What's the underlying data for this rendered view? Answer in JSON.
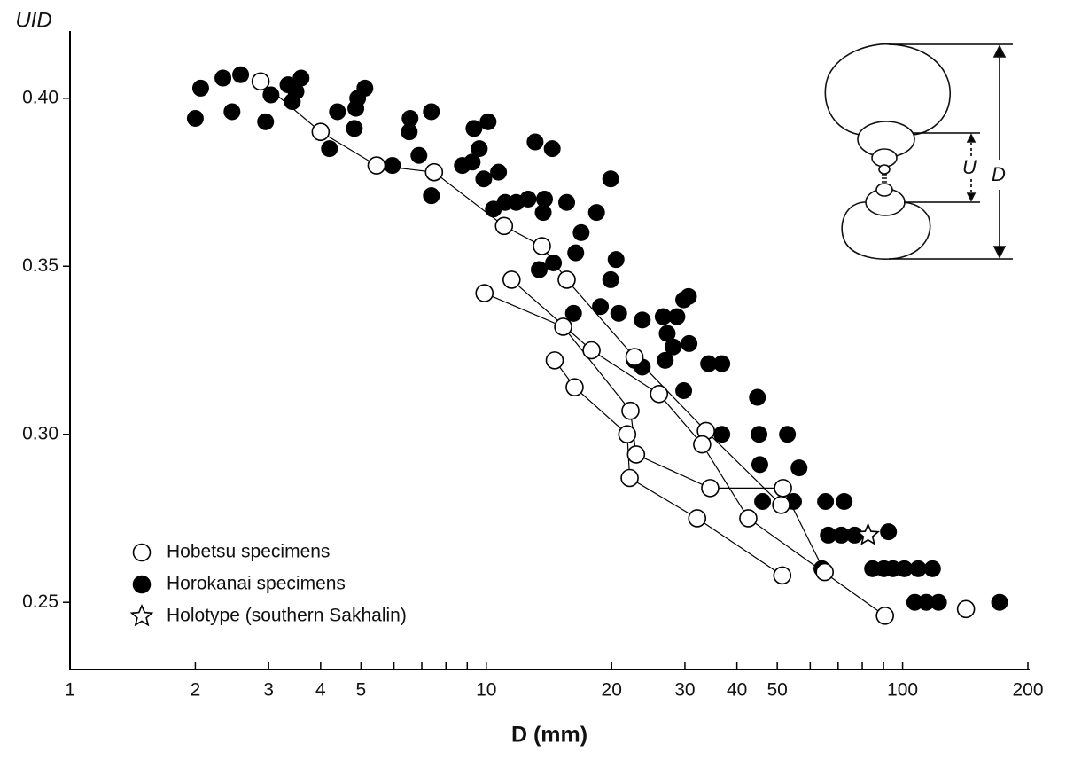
{
  "chart_data": {
    "type": "scatter",
    "x_label": "D (mm)",
    "y_label": "UID",
    "xscale": "log",
    "xlim": [
      1,
      200
    ],
    "xticks": [
      1,
      2,
      3,
      4,
      5,
      10,
      20,
      30,
      40,
      50,
      100,
      200
    ],
    "xminorticks": [
      6,
      7,
      8,
      9,
      60,
      70,
      80,
      90
    ],
    "ylim": [
      0.23,
      0.42
    ],
    "yticks": [
      0.25,
      {
        "value": 0.3,
        "label": "0.30"
      },
      0.35,
      {
        "value": 0.4,
        "label": "0.40"
      }
    ],
    "grid": false,
    "legend": "lower left",
    "series": [
      {
        "name": "Hobetsu specimens",
        "marker": "open-circle",
        "color": "#000000",
        "connected": true,
        "tracks": [
          {
            "x": [
              2.87,
              4.0,
              5.45,
              7.49,
              11.03,
              13.6,
              15.6,
              22.7,
              33.7,
              51.1
            ],
            "values": [
              0.405,
              0.39,
              0.38,
              0.378,
              0.362,
              0.356,
              0.346,
              0.323,
              0.301,
              0.279
            ]
          },
          {
            "x": [
              11.5,
              17.9,
              26.0,
              33.0,
              42.6,
              90.7
            ],
            "values": [
              0.346,
              0.325,
              0.312,
              0.297,
              0.275,
              0.246
            ]
          },
          {
            "x": [
              9.9,
              15.3,
              22.2,
              22.9,
              34.5,
              51.6,
              65.0
            ],
            "values": [
              0.342,
              0.332,
              0.307,
              0.294,
              0.284,
              0.284,
              0.259
            ]
          },
          {
            "x": [
              14.6,
              16.3,
              21.8,
              22.1,
              32.1,
              51.4
            ],
            "values": [
              0.322,
              0.314,
              0.3,
              0.287,
              0.275,
              0.258
            ]
          },
          {
            "x": [
              142
            ],
            "values": [
              0.248
            ]
          }
        ]
      },
      {
        "name": "Horokanai specimens",
        "marker": "filled-circle",
        "color": "#000000",
        "connected": false,
        "tracks": [
          {
            "x": [
              2.0,
              2.06,
              2.33,
              2.45,
              2.57,
              2.95,
              3.04,
              3.34,
              3.42,
              3.59,
              3.49,
              4.2,
              4.39,
              4.82,
              4.86,
              4.91,
              5.11,
              5.95,
              6.56,
              6.53,
              6.89,
              7.38,
              7.38,
              8.76,
              9.25,
              9.34,
              9.62,
              9.86,
              10.1,
              10.7,
              10.4,
              11.1,
              11.8,
              12.6,
              13.1,
              13.7,
              13.8,
              14.4,
              13.4,
              14.5,
              15.6,
              16.2,
              16.4,
              16.9,
              18.4,
              18.8,
              19.9,
              19.9,
              20.5,
              20.8,
              22.7,
              23.7,
              23.7,
              26.6,
              26.9,
              27.2,
              28.1,
              28.7,
              29.8,
              30.6,
              29.8,
              30.7,
              34.2,
              36.8,
              36.8,
              44.8,
              45.4,
              45.2,
              52.9,
              56.4,
              46.1,
              54.7,
              65.3,
              72.4,
              66.3,
              71.3,
              76.7,
              64.0,
              92.5,
              84.7,
              90.2,
              94.8,
              101,
              109,
              118,
              107,
              114,
              122,
              171
            ],
            "values": [
              0.394,
              0.403,
              0.406,
              0.396,
              0.407,
              0.393,
              0.401,
              0.404,
              0.399,
              0.406,
              0.402,
              0.385,
              0.396,
              0.391,
              0.397,
              0.4,
              0.403,
              0.38,
              0.394,
              0.39,
              0.383,
              0.396,
              0.371,
              0.38,
              0.381,
              0.391,
              0.385,
              0.376,
              0.393,
              0.378,
              0.367,
              0.369,
              0.369,
              0.37,
              0.387,
              0.366,
              0.37,
              0.385,
              0.349,
              0.351,
              0.369,
              0.336,
              0.354,
              0.36,
              0.366,
              0.338,
              0.376,
              0.346,
              0.352,
              0.336,
              0.322,
              0.32,
              0.334,
              0.335,
              0.322,
              0.33,
              0.326,
              0.335,
              0.34,
              0.341,
              0.313,
              0.327,
              0.321,
              0.321,
              0.3,
              0.311,
              0.291,
              0.3,
              0.3,
              0.29,
              0.28,
              0.28,
              0.28,
              0.28,
              0.27,
              0.27,
              0.27,
              0.26,
              0.271,
              0.26,
              0.26,
              0.26,
              0.26,
              0.26,
              0.26,
              0.25,
              0.25,
              0.25,
              0.25
            ]
          }
        ]
      },
      {
        "name": "Holotype (southern Sakhalin)",
        "marker": "star",
        "color": "#000000",
        "connected": false,
        "tracks": [
          {
            "x": [
              82.6
            ],
            "values": [
              0.27
            ]
          }
        ]
      }
    ],
    "inset": {
      "labels": [
        "U",
        "D"
      ]
    }
  }
}
